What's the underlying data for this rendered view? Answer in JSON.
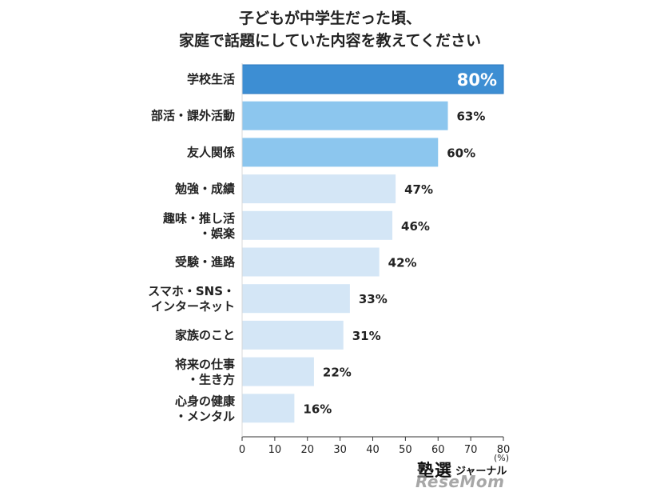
{
  "title_lines": [
    "子どもが中学生だった頃、",
    "家庭で話題にしていた内容を教えてください"
  ],
  "chart_data": {
    "type": "bar",
    "orientation": "horizontal",
    "categories": [
      [
        "学校生活"
      ],
      [
        "部活・課外活動"
      ],
      [
        "友人関係"
      ],
      [
        "勉強・成績"
      ],
      [
        "趣味・推し活",
        "・娯楽"
      ],
      [
        "受験・進路"
      ],
      [
        "スマホ・SNS・",
        "インターネット"
      ],
      [
        "家族のこと"
      ],
      [
        "将来の仕事",
        "・生き方"
      ],
      [
        "心身の健康",
        "・メンタル"
      ]
    ],
    "values": [
      80,
      63,
      60,
      47,
      46,
      42,
      33,
      31,
      22,
      16
    ],
    "value_labels": [
      "80%",
      "63%",
      "60%",
      "47%",
      "46%",
      "42%",
      "33%",
      "31%",
      "22%",
      "16%"
    ],
    "xlim": [
      0,
      80
    ],
    "xticks": [
      0,
      10,
      20,
      30,
      40,
      50,
      60,
      70,
      80
    ],
    "xunit": "(%)",
    "colors": {
      "top1": "#3d8ed3",
      "top3": "#8cc6ee",
      "rest": "#d4e6f6",
      "top1_border": "#2a78c0"
    }
  },
  "watermark": {
    "brand_main": "塾選",
    "brand_sub": "ジャーナル",
    "brand_second": "ReseMom"
  }
}
